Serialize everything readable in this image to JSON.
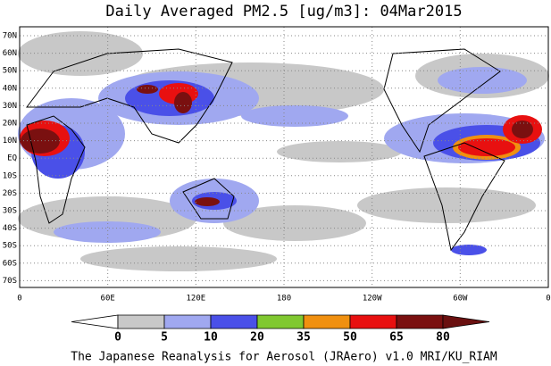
{
  "title": "Daily Averaged PM2.5 [ug/m3]: 04Mar2015",
  "lat_labels": [
    "70N",
    "60N",
    "50N",
    "40N",
    "30N",
    "20N",
    "10N",
    "EQ",
    "10S",
    "20S",
    "30S",
    "40S",
    "50S",
    "60S",
    "70S"
  ],
  "lon_labels": [
    "0",
    "60E",
    "120E",
    "180",
    "120W",
    "60W",
    "0"
  ],
  "colorbar": {
    "levels": [
      0,
      5,
      10,
      20,
      35,
      50,
      65,
      80
    ],
    "colors": [
      "#ffffff",
      "#c8c8c8",
      "#a0a8f0",
      "#4a50e8",
      "#80c830",
      "#f09010",
      "#e81010",
      "#7a1010",
      "#6a1010"
    ]
  },
  "footer": "The Japanese Reanalysis for Aerosol (JRAero) v1.0 MRI/KU_RIAM"
}
